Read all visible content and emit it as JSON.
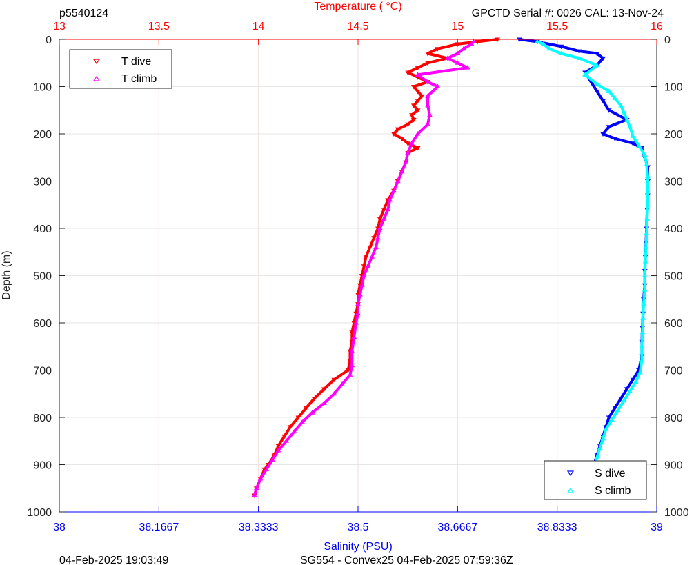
{
  "header": {
    "profile_id": "p5540124",
    "serial": "GPCTD Serial #: 0026 CAL: 13-Nov-24"
  },
  "footer": {
    "left": "04-Feb-2025 19:03:49",
    "center": "SG554 - Convex25 04-Feb-2025 07:59:36Z"
  },
  "chart_data": {
    "type": "scatter",
    "title": "",
    "ylabel": "Depth (m)",
    "ylim": [
      0,
      1000
    ],
    "y_reversed": true,
    "y_ticks": [
      0,
      100,
      200,
      300,
      400,
      500,
      600,
      700,
      800,
      900,
      1000
    ],
    "y_tick_labels": [
      "0",
      "100",
      "200",
      "300",
      "400",
      "500",
      "600",
      "700",
      "800",
      "900",
      "1000"
    ],
    "x_top": {
      "label": "Temperature (    °C)",
      "range": [
        13,
        16
      ],
      "ticks": [
        13,
        13.5,
        14,
        14.5,
        15,
        15.5,
        16
      ],
      "tick_labels": [
        "13",
        "13.5",
        "14",
        "14.5",
        "15",
        "15.5",
        "16"
      ],
      "color": "#ff0000",
      "grid": true
    },
    "x_bottom": {
      "label": "Salinity (PSU)",
      "range": [
        38,
        39
      ],
      "ticks": [
        38,
        38.1667,
        38.3333,
        38.5,
        38.6667,
        38.8333,
        39
      ],
      "tick_labels": [
        "38",
        "38.1667",
        "38.3333",
        "38.5",
        "38.6667",
        "38.8333",
        "39"
      ],
      "color": "#0000ff"
    },
    "grid": true,
    "legends": [
      {
        "placement": "top-left",
        "entries": [
          "T dive",
          "T climb"
        ]
      },
      {
        "placement": "bottom-right",
        "entries": [
          "S dive",
          "S climb"
        ]
      }
    ],
    "series": [
      {
        "name": "T dive",
        "axis": "temperature",
        "color": "#ff0000",
        "marker": "triangle-down",
        "points": [
          [
            15.2,
            0
          ],
          [
            15.1,
            5
          ],
          [
            15.0,
            10
          ],
          [
            14.9,
            20
          ],
          [
            14.85,
            30
          ],
          [
            14.95,
            40
          ],
          [
            14.85,
            50
          ],
          [
            14.8,
            60
          ],
          [
            14.75,
            70
          ],
          [
            14.8,
            80
          ],
          [
            14.85,
            90
          ],
          [
            14.78,
            100
          ],
          [
            14.8,
            110
          ],
          [
            14.82,
            120
          ],
          [
            14.8,
            130
          ],
          [
            14.78,
            140
          ],
          [
            14.8,
            150
          ],
          [
            14.77,
            160
          ],
          [
            14.78,
            170
          ],
          [
            14.75,
            180
          ],
          [
            14.7,
            190
          ],
          [
            14.68,
            200
          ],
          [
            14.72,
            210
          ],
          [
            14.75,
            220
          ],
          [
            14.8,
            230
          ],
          [
            14.75,
            240
          ],
          [
            14.74,
            260
          ],
          [
            14.72,
            280
          ],
          [
            14.7,
            300
          ],
          [
            14.68,
            320
          ],
          [
            14.65,
            340
          ],
          [
            14.63,
            360
          ],
          [
            14.61,
            380
          ],
          [
            14.6,
            400
          ],
          [
            14.58,
            420
          ],
          [
            14.56,
            440
          ],
          [
            14.54,
            460
          ],
          [
            14.53,
            480
          ],
          [
            14.52,
            500
          ],
          [
            14.51,
            520
          ],
          [
            14.5,
            540
          ],
          [
            14.5,
            560
          ],
          [
            14.49,
            580
          ],
          [
            14.48,
            600
          ],
          [
            14.47,
            620
          ],
          [
            14.47,
            640
          ],
          [
            14.46,
            660
          ],
          [
            14.46,
            680
          ],
          [
            14.45,
            700
          ],
          [
            14.38,
            720
          ],
          [
            14.33,
            740
          ],
          [
            14.28,
            760
          ],
          [
            14.24,
            780
          ],
          [
            14.2,
            800
          ],
          [
            14.16,
            820
          ],
          [
            14.13,
            840
          ],
          [
            14.1,
            860
          ],
          [
            14.08,
            880
          ],
          [
            14.05,
            900
          ],
          [
            14.03,
            910
          ],
          [
            14.01,
            930
          ],
          [
            13.99,
            950
          ],
          [
            13.98,
            965
          ]
        ]
      },
      {
        "name": "T climb",
        "axis": "temperature",
        "color": "#ff00ff",
        "marker": "triangle-up",
        "points": [
          [
            13.98,
            965
          ],
          [
            13.99,
            950
          ],
          [
            14.01,
            930
          ],
          [
            14.04,
            910
          ],
          [
            14.07,
            890
          ],
          [
            14.1,
            870
          ],
          [
            14.14,
            850
          ],
          [
            14.18,
            830
          ],
          [
            14.22,
            810
          ],
          [
            14.27,
            790
          ],
          [
            14.33,
            770
          ],
          [
            14.38,
            750
          ],
          [
            14.42,
            730
          ],
          [
            14.46,
            710
          ],
          [
            14.47,
            690
          ],
          [
            14.47,
            660
          ],
          [
            14.48,
            630
          ],
          [
            14.49,
            600
          ],
          [
            14.5,
            580
          ],
          [
            14.5,
            560
          ],
          [
            14.51,
            540
          ],
          [
            14.52,
            520
          ],
          [
            14.53,
            500
          ],
          [
            14.55,
            480
          ],
          [
            14.57,
            460
          ],
          [
            14.59,
            440
          ],
          [
            14.6,
            420
          ],
          [
            14.61,
            400
          ],
          [
            14.63,
            380
          ],
          [
            14.65,
            360
          ],
          [
            14.66,
            340
          ],
          [
            14.68,
            320
          ],
          [
            14.7,
            300
          ],
          [
            14.72,
            280
          ],
          [
            14.74,
            260
          ],
          [
            14.75,
            240
          ],
          [
            14.77,
            220
          ],
          [
            14.8,
            200
          ],
          [
            14.85,
            180
          ],
          [
            14.86,
            160
          ],
          [
            14.85,
            140
          ],
          [
            14.85,
            120
          ],
          [
            14.9,
            100
          ],
          [
            14.85,
            90
          ],
          [
            14.8,
            75
          ],
          [
            15.05,
            60
          ],
          [
            15.0,
            50
          ],
          [
            14.95,
            40
          ],
          [
            15.0,
            30
          ],
          [
            15.03,
            20
          ],
          [
            15.07,
            10
          ],
          [
            15.08,
            5
          ]
        ]
      },
      {
        "name": "S dive",
        "axis": "salinity",
        "color": "#0000ff",
        "marker": "triangle-down",
        "points": [
          [
            38.77,
            0
          ],
          [
            38.8,
            5
          ],
          [
            38.84,
            15
          ],
          [
            38.87,
            25
          ],
          [
            38.9,
            30
          ],
          [
            38.91,
            40
          ],
          [
            38.9,
            55
          ],
          [
            38.88,
            70
          ],
          [
            38.89,
            90
          ],
          [
            38.9,
            110
          ],
          [
            38.91,
            130
          ],
          [
            38.92,
            150
          ],
          [
            38.95,
            170
          ],
          [
            38.92,
            185
          ],
          [
            38.91,
            200
          ],
          [
            38.93,
            210
          ],
          [
            38.96,
            220
          ],
          [
            38.975,
            230
          ],
          [
            38.98,
            250
          ],
          [
            38.985,
            270
          ],
          [
            38.985,
            300
          ],
          [
            38.985,
            330
          ],
          [
            38.984,
            360
          ],
          [
            38.983,
            400
          ],
          [
            38.982,
            430
          ],
          [
            38.981,
            460
          ],
          [
            38.98,
            490
          ],
          [
            38.98,
            520
          ],
          [
            38.978,
            550
          ],
          [
            38.977,
            580
          ],
          [
            38.976,
            610
          ],
          [
            38.975,
            640
          ],
          [
            38.975,
            670
          ],
          [
            38.97,
            700
          ],
          [
            38.96,
            720
          ],
          [
            38.95,
            740
          ],
          [
            38.94,
            760
          ],
          [
            38.93,
            780
          ],
          [
            38.92,
            800
          ],
          [
            38.915,
            820
          ],
          [
            38.91,
            840
          ],
          [
            38.905,
            860
          ],
          [
            38.9,
            880
          ],
          [
            38.895,
            900
          ],
          [
            38.89,
            920
          ],
          [
            38.89,
            940
          ],
          [
            38.89,
            965
          ]
        ]
      },
      {
        "name": "S climb",
        "axis": "salinity",
        "color": "#00ffff",
        "marker": "triangle-up",
        "points": [
          [
            38.89,
            965
          ],
          [
            38.89,
            945
          ],
          [
            38.89,
            925
          ],
          [
            38.895,
            905
          ],
          [
            38.9,
            885
          ],
          [
            38.905,
            865
          ],
          [
            38.91,
            845
          ],
          [
            38.915,
            825
          ],
          [
            38.925,
            805
          ],
          [
            38.935,
            785
          ],
          [
            38.945,
            765
          ],
          [
            38.955,
            745
          ],
          [
            38.965,
            725
          ],
          [
            38.972,
            705
          ],
          [
            38.975,
            680
          ],
          [
            38.975,
            650
          ],
          [
            38.976,
            620
          ],
          [
            38.977,
            590
          ],
          [
            38.978,
            560
          ],
          [
            38.98,
            530
          ],
          [
            38.98,
            500
          ],
          [
            38.981,
            470
          ],
          [
            38.982,
            440
          ],
          [
            38.983,
            410
          ],
          [
            38.984,
            380
          ],
          [
            38.985,
            350
          ],
          [
            38.985,
            320
          ],
          [
            38.985,
            290
          ],
          [
            38.983,
            265
          ],
          [
            38.98,
            245
          ],
          [
            38.97,
            225
          ],
          [
            38.96,
            205
          ],
          [
            38.955,
            185
          ],
          [
            38.95,
            170
          ],
          [
            38.945,
            155
          ],
          [
            38.94,
            140
          ],
          [
            38.93,
            125
          ],
          [
            38.92,
            110
          ],
          [
            38.9,
            95
          ],
          [
            38.88,
            75
          ],
          [
            38.9,
            55
          ],
          [
            38.87,
            40
          ],
          [
            38.84,
            30
          ],
          [
            38.82,
            20
          ],
          [
            38.81,
            10
          ],
          [
            38.8,
            5
          ]
        ]
      }
    ]
  }
}
